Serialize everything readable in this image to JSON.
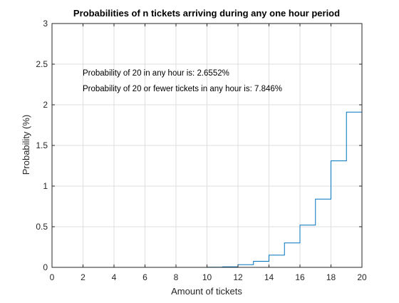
{
  "chart_data": {
    "type": "line",
    "step": true,
    "title": "Probabilities of n tickets arriving during any one hour period",
    "xlabel": "Amount of tickets",
    "ylabel": "Probability (%)",
    "xlim": [
      0,
      20
    ],
    "ylim": [
      0,
      3
    ],
    "xticks": [
      0,
      2,
      4,
      6,
      8,
      10,
      12,
      14,
      16,
      18,
      20
    ],
    "yticks": [
      0,
      0.5,
      1,
      1.5,
      2,
      2.5,
      3
    ],
    "xtick_labels": [
      "0",
      "2",
      "4",
      "6",
      "8",
      "10",
      "12",
      "14",
      "16",
      "18",
      "20"
    ],
    "ytick_labels": [
      "0",
      "0.5",
      "1",
      "1.5",
      "2",
      "2.5",
      "3"
    ],
    "grid": true,
    "series": [
      {
        "color": "#0072BD",
        "x": [
          0,
          1,
          2,
          3,
          4,
          5,
          6,
          7,
          8,
          9,
          10,
          11,
          12,
          13,
          14,
          15,
          16,
          17,
          18,
          19,
          20
        ],
        "y": [
          0,
          0,
          0,
          0,
          0,
          0,
          0,
          0,
          0,
          0.0004,
          0.0018,
          0.0068,
          0.033,
          0.075,
          0.15,
          0.3,
          0.52,
          0.84,
          1.31,
          1.91,
          2.6552
        ]
      }
    ],
    "annotations": [
      "Probability of 20 in any hour is: 2.6552%",
      "Probability of 20 or fewer tickets in any hour is: 7.846%"
    ]
  }
}
